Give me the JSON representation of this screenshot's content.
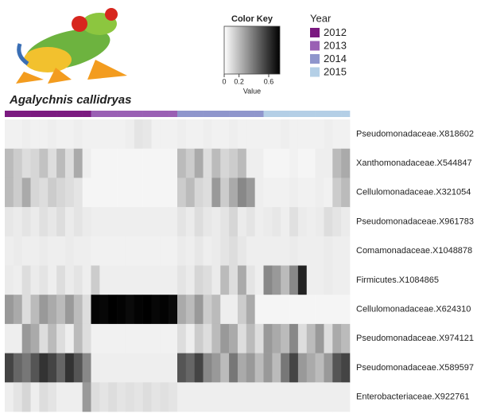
{
  "chart_data": {
    "type": "heatmap",
    "species": "Agalychnis callidryas",
    "color_key": {
      "title": "Color Key",
      "xlabel": "Value",
      "xlim": [
        0,
        0.75
      ],
      "xticks": [
        0,
        0.2,
        0.6
      ],
      "low_color": "#ffffff",
      "high_color": "#000000"
    },
    "legend_title": "Year",
    "groups": [
      {
        "name": "2012",
        "color": "#7b1a80"
      },
      {
        "name": "2013",
        "color": "#9a60b4"
      },
      {
        "name": "2014",
        "color": "#8f96cc"
      },
      {
        "name": "2015",
        "color": "#b4cfe6"
      }
    ],
    "column_groups": [
      "2012",
      "2012",
      "2012",
      "2012",
      "2012",
      "2012",
      "2012",
      "2012",
      "2012",
      "2012",
      "2013",
      "2013",
      "2013",
      "2013",
      "2013",
      "2013",
      "2013",
      "2013",
      "2013",
      "2013",
      "2014",
      "2014",
      "2014",
      "2014",
      "2014",
      "2014",
      "2014",
      "2014",
      "2014",
      "2014",
      "2015",
      "2015",
      "2015",
      "2015",
      "2015",
      "2015",
      "2015",
      "2015",
      "2015",
      "2015"
    ],
    "rows": [
      "Pseudomonadaceae.X818602",
      "Xanthomonadaceae.X544847",
      "Cellulomonadaceae.X321054",
      "Pseudomonadaceae.X961783",
      "Comamonadaceae.X1048878",
      "Firmicutes.X1084865",
      "Cellulomonadaceae.X624310",
      "Pseudomonadaceae.X974121",
      "Pseudomonadaceae.X589597",
      "Enterobacteriaceae.X922761"
    ],
    "values": [
      [
        0.04,
        0.04,
        0.05,
        0.04,
        0.04,
        0.05,
        0.04,
        0.04,
        0.05,
        0.04,
        0.04,
        0.04,
        0.04,
        0.04,
        0.05,
        0.08,
        0.07,
        0.04,
        0.04,
        0.04,
        0.05,
        0.04,
        0.04,
        0.05,
        0.04,
        0.04,
        0.05,
        0.04,
        0.04,
        0.04,
        0.04,
        0.04,
        0.05,
        0.04,
        0.04,
        0.04,
        0.04,
        0.05,
        0.04,
        0.04
      ],
      [
        0.2,
        0.15,
        0.1,
        0.12,
        0.18,
        0.1,
        0.2,
        0.1,
        0.25,
        0.05,
        0.03,
        0.03,
        0.03,
        0.03,
        0.03,
        0.03,
        0.03,
        0.03,
        0.03,
        0.03,
        0.2,
        0.15,
        0.25,
        0.1,
        0.2,
        0.12,
        0.15,
        0.2,
        0.05,
        0.05,
        0.03,
        0.03,
        0.03,
        0.04,
        0.03,
        0.03,
        0.05,
        0.05,
        0.2,
        0.25
      ],
      [
        0.2,
        0.15,
        0.25,
        0.12,
        0.1,
        0.15,
        0.12,
        0.1,
        0.08,
        0.03,
        0.03,
        0.03,
        0.03,
        0.03,
        0.03,
        0.03,
        0.03,
        0.03,
        0.03,
        0.03,
        0.15,
        0.2,
        0.12,
        0.1,
        0.3,
        0.15,
        0.25,
        0.35,
        0.3,
        0.05,
        0.04,
        0.04,
        0.04,
        0.05,
        0.04,
        0.04,
        0.05,
        0.04,
        0.15,
        0.2
      ],
      [
        0.07,
        0.06,
        0.08,
        0.06,
        0.09,
        0.07,
        0.1,
        0.06,
        0.08,
        0.06,
        0.05,
        0.05,
        0.05,
        0.05,
        0.05,
        0.05,
        0.05,
        0.05,
        0.05,
        0.05,
        0.08,
        0.06,
        0.1,
        0.07,
        0.06,
        0.08,
        0.12,
        0.06,
        0.08,
        0.05,
        0.06,
        0.07,
        0.05,
        0.09,
        0.06,
        0.05,
        0.06,
        0.1,
        0.08,
        0.06
      ],
      [
        0.05,
        0.06,
        0.05,
        0.05,
        0.06,
        0.05,
        0.05,
        0.06,
        0.05,
        0.05,
        0.04,
        0.04,
        0.04,
        0.04,
        0.04,
        0.04,
        0.04,
        0.04,
        0.04,
        0.04,
        0.06,
        0.05,
        0.07,
        0.05,
        0.06,
        0.08,
        0.1,
        0.07,
        0.05,
        0.05,
        0.05,
        0.05,
        0.05,
        0.06,
        0.05,
        0.05,
        0.05,
        0.06,
        0.05,
        0.05
      ],
      [
        0.06,
        0.05,
        0.1,
        0.06,
        0.08,
        0.05,
        0.1,
        0.06,
        0.08,
        0.05,
        0.15,
        0.05,
        0.05,
        0.05,
        0.05,
        0.05,
        0.05,
        0.05,
        0.05,
        0.05,
        0.08,
        0.06,
        0.12,
        0.1,
        0.06,
        0.2,
        0.1,
        0.25,
        0.08,
        0.05,
        0.35,
        0.3,
        0.2,
        0.35,
        0.65,
        0.05,
        0.05,
        0.06,
        0.05,
        0.05
      ],
      [
        0.3,
        0.25,
        0.1,
        0.2,
        0.3,
        0.25,
        0.2,
        0.3,
        0.2,
        0.1,
        0.74,
        0.73,
        0.75,
        0.74,
        0.72,
        0.74,
        0.75,
        0.73,
        0.74,
        0.72,
        0.25,
        0.2,
        0.3,
        0.15,
        0.2,
        0.05,
        0.05,
        0.15,
        0.25,
        0.03,
        0.03,
        0.03,
        0.03,
        0.03,
        0.03,
        0.03,
        0.03,
        0.03,
        0.03,
        0.03
      ],
      [
        0.05,
        0.05,
        0.3,
        0.25,
        0.1,
        0.2,
        0.1,
        0.05,
        0.2,
        0.1,
        0.04,
        0.04,
        0.04,
        0.04,
        0.04,
        0.04,
        0.04,
        0.04,
        0.04,
        0.04,
        0.1,
        0.05,
        0.15,
        0.1,
        0.2,
        0.3,
        0.25,
        0.1,
        0.2,
        0.1,
        0.3,
        0.25,
        0.2,
        0.35,
        0.1,
        0.2,
        0.3,
        0.1,
        0.25,
        0.2
      ],
      [
        0.55,
        0.45,
        0.4,
        0.5,
        0.6,
        0.55,
        0.45,
        0.6,
        0.5,
        0.35,
        0.05,
        0.05,
        0.05,
        0.05,
        0.05,
        0.05,
        0.05,
        0.05,
        0.05,
        0.05,
        0.5,
        0.45,
        0.55,
        0.35,
        0.3,
        0.2,
        0.4,
        0.25,
        0.3,
        0.2,
        0.3,
        0.2,
        0.4,
        0.55,
        0.3,
        0.25,
        0.2,
        0.3,
        0.5,
        0.55
      ],
      [
        0.05,
        0.08,
        0.12,
        0.05,
        0.1,
        0.08,
        0.05,
        0.05,
        0.05,
        0.3,
        0.1,
        0.08,
        0.1,
        0.08,
        0.09,
        0.08,
        0.1,
        0.08,
        0.09,
        0.08,
        0.05,
        0.05,
        0.05,
        0.05,
        0.05,
        0.05,
        0.05,
        0.05,
        0.05,
        0.05,
        0.05,
        0.05,
        0.05,
        0.05,
        0.05,
        0.05,
        0.05,
        0.05,
        0.05,
        0.05
      ]
    ]
  }
}
